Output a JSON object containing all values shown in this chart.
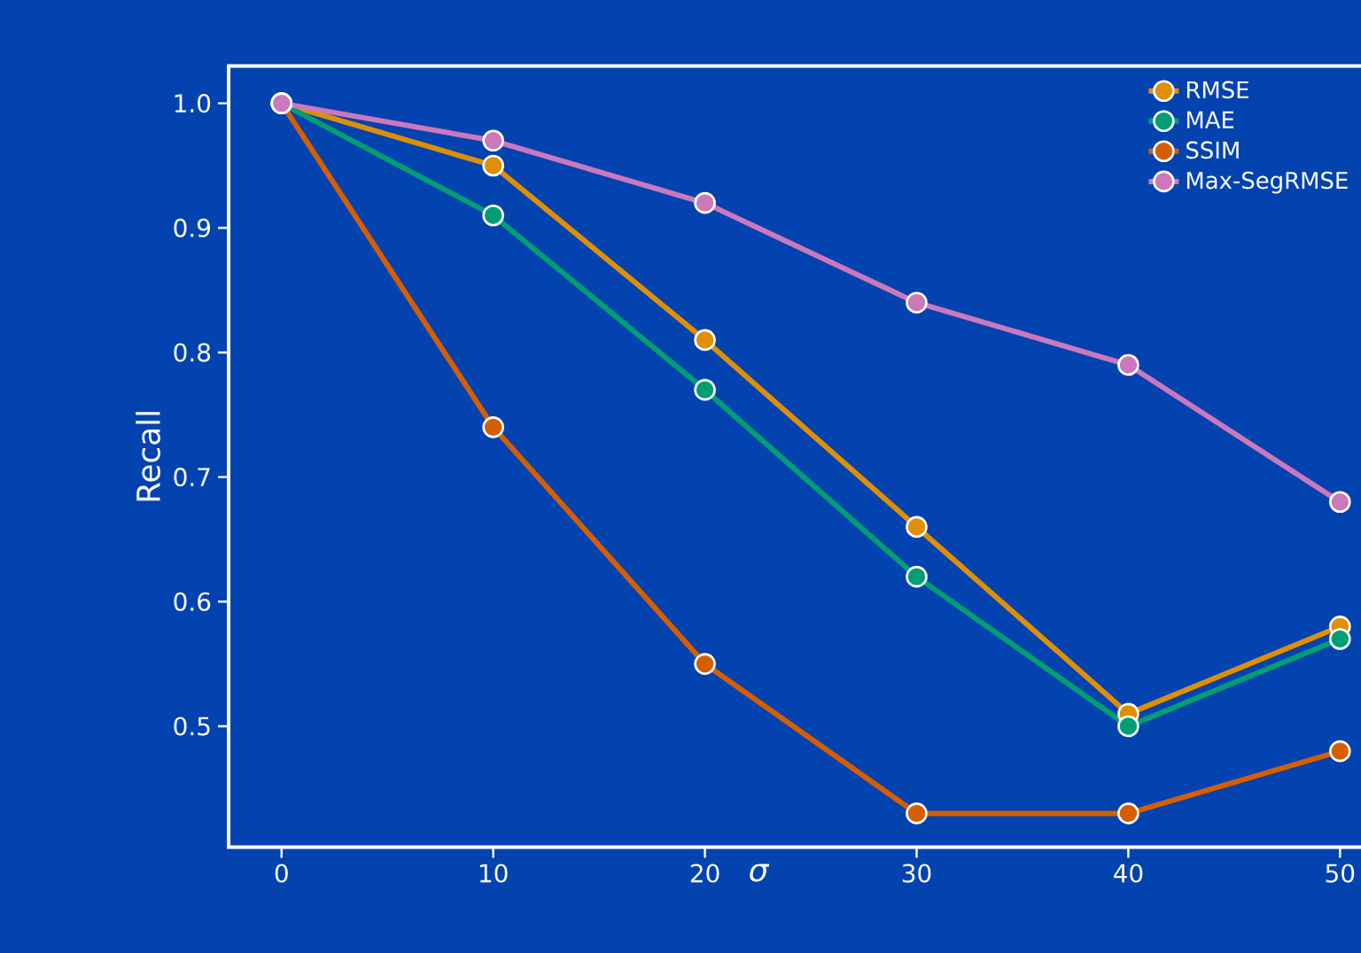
{
  "chart_data": {
    "type": "line",
    "xlabel": "σ",
    "ylabel": "Recall",
    "x": [
      0,
      10,
      20,
      30,
      40,
      50
    ],
    "series": [
      {
        "name": "RMSE",
        "color": "#de8f05",
        "values": [
          1.0,
          0.95,
          0.81,
          0.66,
          0.51,
          0.58
        ]
      },
      {
        "name": "MAE",
        "color": "#029e73",
        "values": [
          1.0,
          0.91,
          0.77,
          0.62,
          0.5,
          0.57
        ]
      },
      {
        "name": "SSIM",
        "color": "#d55e00",
        "values": [
          1.0,
          0.74,
          0.55,
          0.43,
          0.43,
          0.48
        ]
      },
      {
        "name": "Max-SegRMSE",
        "color": "#cc78bc",
        "values": [
          1.0,
          0.97,
          0.92,
          0.84,
          0.79,
          0.68
        ]
      }
    ],
    "xlim": [
      -2.5,
      52.5
    ],
    "ylim": [
      0.403,
      1.03
    ],
    "xticks": [
      0,
      10,
      20,
      30,
      40,
      50
    ],
    "yticks": [
      0.5,
      0.6,
      0.7,
      0.8,
      0.9,
      {
        "value": 1.0,
        "label": "1.0"
      }
    ],
    "grid": false,
    "legend": "top right",
    "marker": "circle",
    "line_style": "solid"
  }
}
